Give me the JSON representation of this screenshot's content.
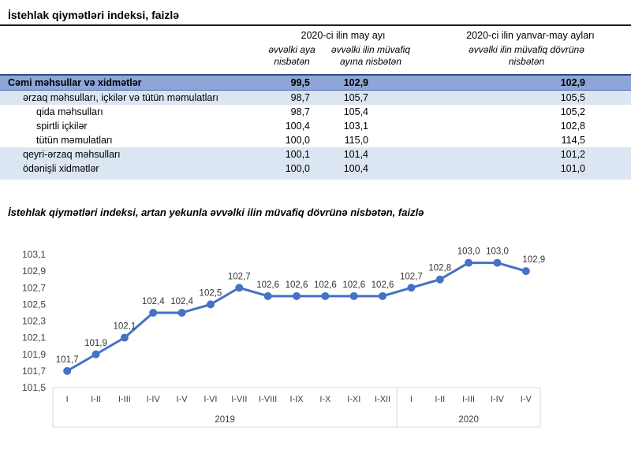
{
  "page": {
    "table_title": "İstehlak qiymətləri indeksi, faizlə",
    "chart_title": "İstehlak qiymətləri indeksi, artan yekunla əvvəlki ilin müvafiq dövrünə nisbətən, faizlə"
  },
  "table": {
    "col_groups": [
      {
        "label": "2020-ci ilin may ayı"
      },
      {
        "label": "2020-ci ilin yanvar-may ayları"
      }
    ],
    "columns": [
      {
        "label": "əvvəlki aya nisbətən"
      },
      {
        "label": "əvvəlki ilin müvafiq ayına nisbətən"
      },
      {
        "label": "əvvəlki ilin müvafiq dövrünə nisbətən"
      }
    ],
    "rows": [
      {
        "label": "Cəmi məhsullar və xidmətlər",
        "values": [
          "99,5",
          "102,9",
          "102,9"
        ],
        "style": "total",
        "indent": 0
      },
      {
        "label": "ərzaq məhsulları, içkilər və tütün məmulatları",
        "values": [
          "98,7",
          "105,7",
          "105,5"
        ],
        "style": "band",
        "indent": 1
      },
      {
        "label": "qida məhsulları",
        "values": [
          "98,7",
          "105,4",
          "105,2"
        ],
        "style": "plain",
        "indent": 2
      },
      {
        "label": "spirtli içkilər",
        "values": [
          "100,4",
          "103,1",
          "102,8"
        ],
        "style": "plain",
        "indent": 2
      },
      {
        "label": "tütün məmulatları",
        "values": [
          "100,0",
          "115,0",
          "114,5"
        ],
        "style": "plain",
        "indent": 2
      },
      {
        "label": "qeyri-ərzaq məhsulları",
        "values": [
          "100,1",
          "101,4",
          "101,2"
        ],
        "style": "band",
        "indent": 1
      },
      {
        "label": "ödənişli xidmətlər",
        "values": [
          "100,0",
          "100,4",
          "101,0"
        ],
        "style": "band",
        "indent": 1
      }
    ]
  },
  "chart_data": {
    "type": "line",
    "title": "İstehlak qiymətləri indeksi, artan yekunla əvvəlki ilin müvafiq dövrünə nisbətən, faizlə",
    "categories": [
      "I",
      "I-II",
      "I-III",
      "I-IV",
      "I-V",
      "I-VI",
      "I-VII",
      "I-VIII",
      "I-IX",
      "I-X",
      "I-XI",
      "I-XII",
      "I",
      "I-II",
      "I-III",
      "I-IV",
      "I-V"
    ],
    "category_groups": [
      {
        "label": "2019",
        "count": 12
      },
      {
        "label": "2020",
        "count": 5
      }
    ],
    "values": [
      101.7,
      101.9,
      102.1,
      102.4,
      102.4,
      102.5,
      102.7,
      102.6,
      102.6,
      102.6,
      102.6,
      102.6,
      102.7,
      102.8,
      103.0,
      103.0,
      102.9
    ],
    "point_labels": [
      "101,7",
      "101,9",
      "102,1",
      "102,4",
      "102,4",
      "102,5",
      "102,7",
      "102,6",
      "102,6",
      "102,6",
      "102,6",
      "102,6",
      "102,7",
      "102,8",
      "103,0",
      "103,0",
      "102,9"
    ],
    "ylim": [
      101.5,
      103.1
    ],
    "ytick_labels": [
      "101,5",
      "101,7",
      "101,9",
      "102,1",
      "102,3",
      "102,5",
      "102,7",
      "102,9",
      "103,1"
    ],
    "xlabel": "",
    "ylabel": "",
    "grid": false,
    "legend": false
  },
  "colors": {
    "line": "#4472C4",
    "total_row_bg": "#8EA5D8",
    "band_row_bg": "#DCE6F2",
    "axis_box_line": "#D9D9D9",
    "chart_text": "#404040"
  }
}
